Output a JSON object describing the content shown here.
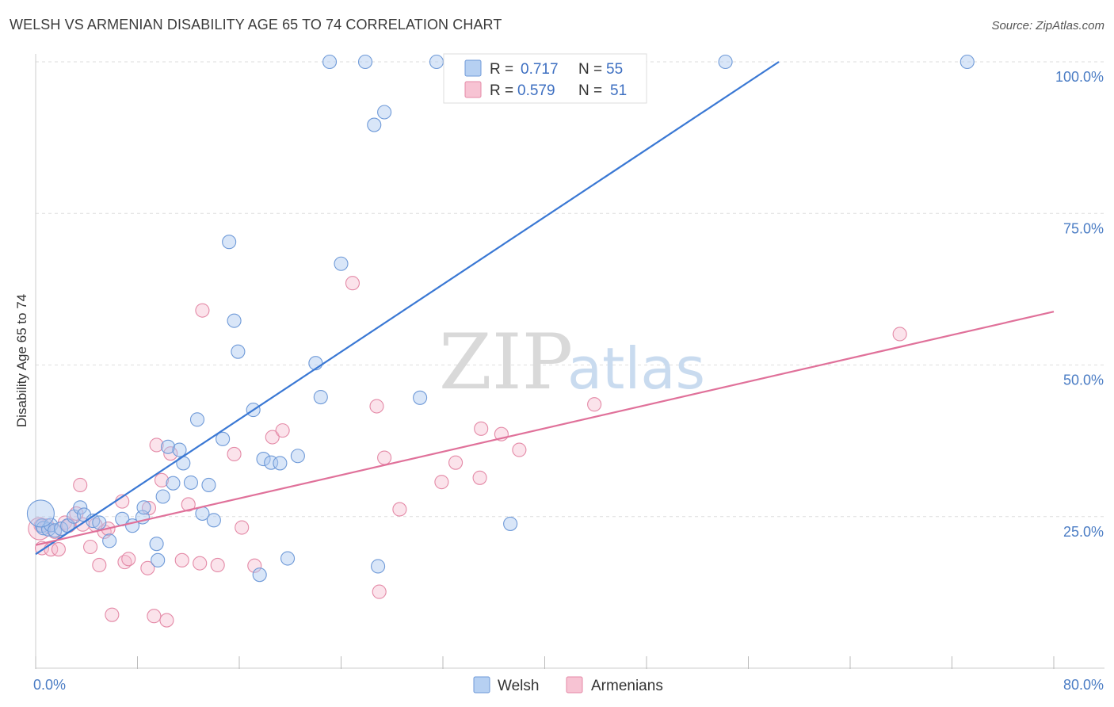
{
  "title": "WELSH VS ARMENIAN DISABILITY AGE 65 TO 74 CORRELATION CHART",
  "source": "Source: ZipAtlas.com",
  "watermark": {
    "zip": "ZIP",
    "atlas": "atlas"
  },
  "legend": {
    "r_label": "R =",
    "n_label": "N =",
    "entries": [
      {
        "series": "Welsh",
        "r": "0.717",
        "n": "55",
        "fill": "#b6d0f2",
        "stroke": "#6f9ad8"
      },
      {
        "series": "Armenians",
        "r": "0.579",
        "n": "51",
        "fill": "#f7c3d3",
        "stroke": "#e48aa7"
      }
    ]
  },
  "chart_data": {
    "type": "scatter",
    "xlabel": "",
    "ylabel": "Disability Age 65 to 74",
    "xlim": [
      0,
      80
    ],
    "ylim": [
      0,
      100
    ],
    "x_tick_labels": [
      "0.0%",
      "80.0%"
    ],
    "y_ticks": [
      25,
      50,
      75,
      100
    ],
    "y_tick_labels": [
      "25.0%",
      "50.0%",
      "75.0%",
      "100.0%"
    ],
    "grid": true,
    "legend_position": "top-center",
    "colors": {
      "welsh": "#3a78d4",
      "armenians": "#e0719a"
    },
    "series": [
      {
        "name": "Welsh",
        "points": [
          [
            0.5,
            23.5
          ],
          [
            0.6,
            23.1
          ],
          [
            1.0,
            22.9
          ],
          [
            1.2,
            23.6
          ],
          [
            1.5,
            22.7
          ],
          [
            2.0,
            23.0
          ],
          [
            2.5,
            23.5
          ],
          [
            3.0,
            25.0
          ],
          [
            3.5,
            26.5
          ],
          [
            3.8,
            25.3
          ],
          [
            4.5,
            24.3
          ],
          [
            5.0,
            24.0
          ],
          [
            5.8,
            21.0
          ],
          [
            6.8,
            24.6
          ],
          [
            7.6,
            23.5
          ],
          [
            8.4,
            24.9
          ],
          [
            8.5,
            26.5
          ],
          [
            9.5,
            20.5
          ],
          [
            9.6,
            17.8
          ],
          [
            10.0,
            28.3
          ],
          [
            10.4,
            36.5
          ],
          [
            10.8,
            30.5
          ],
          [
            11.3,
            36.0
          ],
          [
            11.6,
            33.8
          ],
          [
            12.2,
            30.6
          ],
          [
            12.7,
            41.0
          ],
          [
            13.1,
            25.5
          ],
          [
            13.6,
            30.2
          ],
          [
            14.0,
            24.4
          ],
          [
            14.7,
            37.8
          ],
          [
            15.2,
            70.3
          ],
          [
            15.6,
            57.3
          ],
          [
            15.9,
            52.2
          ],
          [
            17.1,
            42.6
          ],
          [
            17.9,
            34.5
          ],
          [
            18.5,
            33.9
          ],
          [
            19.2,
            33.8
          ],
          [
            19.8,
            18.1
          ],
          [
            20.6,
            35.0
          ],
          [
            22.0,
            50.3
          ],
          [
            22.4,
            44.7
          ],
          [
            23.1,
            100.0
          ],
          [
            24.0,
            66.7
          ],
          [
            25.9,
            100.0
          ],
          [
            26.6,
            89.6
          ],
          [
            26.9,
            16.8
          ],
          [
            27.4,
            91.7
          ],
          [
            30.2,
            44.6
          ],
          [
            31.5,
            100.0
          ],
          [
            37.3,
            23.8
          ],
          [
            39.8,
            100.0
          ],
          [
            54.2,
            100.0
          ],
          [
            73.2,
            100.0
          ],
          [
            17.6,
            15.4
          ]
        ],
        "trend": {
          "x": [
            0,
            58.4
          ],
          "y": [
            18.8,
            100.0
          ]
        }
      },
      {
        "name": "Armenians",
        "points": [
          [
            0.4,
            23.5
          ],
          [
            0.5,
            19.8
          ],
          [
            0.9,
            23.5
          ],
          [
            1.2,
            19.6
          ],
          [
            1.5,
            22.5
          ],
          [
            1.8,
            19.6
          ],
          [
            2.3,
            24.0
          ],
          [
            2.6,
            23.5
          ],
          [
            3.2,
            25.5
          ],
          [
            3.5,
            30.2
          ],
          [
            3.7,
            23.7
          ],
          [
            4.3,
            20.0
          ],
          [
            4.7,
            23.6
          ],
          [
            5.0,
            17.0
          ],
          [
            5.4,
            22.5
          ],
          [
            5.7,
            23.0
          ],
          [
            6.0,
            8.8
          ],
          [
            6.8,
            27.5
          ],
          [
            7.0,
            17.5
          ],
          [
            7.3,
            18.0
          ],
          [
            8.8,
            16.5
          ],
          [
            8.9,
            26.4
          ],
          [
            9.3,
            8.6
          ],
          [
            9.5,
            36.8
          ],
          [
            9.9,
            31.0
          ],
          [
            10.3,
            7.9
          ],
          [
            10.6,
            35.4
          ],
          [
            11.5,
            17.8
          ],
          [
            12.0,
            27.0
          ],
          [
            12.9,
            17.3
          ],
          [
            13.1,
            59.0
          ],
          [
            14.3,
            17.0
          ],
          [
            15.6,
            35.3
          ],
          [
            16.2,
            23.2
          ],
          [
            17.2,
            16.9
          ],
          [
            18.6,
            38.1
          ],
          [
            19.4,
            39.2
          ],
          [
            24.9,
            63.5
          ],
          [
            26.8,
            43.2
          ],
          [
            27.0,
            12.6
          ],
          [
            27.4,
            34.7
          ],
          [
            28.6,
            26.2
          ],
          [
            31.9,
            30.7
          ],
          [
            33.0,
            33.9
          ],
          [
            34.9,
            31.4
          ],
          [
            35.0,
            39.5
          ],
          [
            36.6,
            38.6
          ],
          [
            38.0,
            36.0
          ],
          [
            43.9,
            43.5
          ],
          [
            67.9,
            55.1
          ]
        ],
        "trend": {
          "x": [
            0,
            80
          ],
          "y": [
            20.3,
            58.8
          ]
        }
      }
    ]
  }
}
